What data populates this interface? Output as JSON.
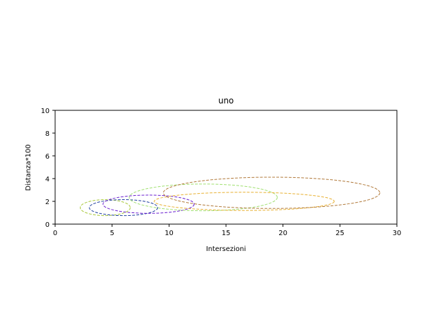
{
  "chart_data": {
    "type": "scatter",
    "title": "uno",
    "xlabel": "Intersezioni",
    "ylabel": "Distanza*100",
    "xlim": [
      0,
      30
    ],
    "ylim": [
      0,
      10
    ],
    "xticks": [
      "0",
      "5",
      "10",
      "15",
      "20",
      "25",
      "30"
    ],
    "yticks": [
      "0",
      "2",
      "4",
      "6",
      "8",
      "10"
    ],
    "grid": false,
    "line_style": "dashed",
    "ellipses": [
      {
        "center": [
          4.4,
          1.45
        ],
        "width": 4.4,
        "height": 1.4,
        "color": "#a8c83a"
      },
      {
        "center": [
          6.0,
          1.45
        ],
        "width": 6.0,
        "height": 1.4,
        "color": "#1f3f9f"
      },
      {
        "center": [
          8.2,
          1.75
        ],
        "width": 8.0,
        "height": 1.6,
        "color": "#6a1ed0"
      },
      {
        "center": [
          13.0,
          2.35
        ],
        "width": 13.0,
        "height": 2.35,
        "color": "#a0e070"
      },
      {
        "center": [
          16.6,
          2.0
        ],
        "width": 15.8,
        "height": 1.6,
        "color": "#e8b030"
      },
      {
        "center": [
          19.0,
          2.75
        ],
        "width": 19.0,
        "height": 2.75,
        "color": "#b07838"
      }
    ]
  }
}
